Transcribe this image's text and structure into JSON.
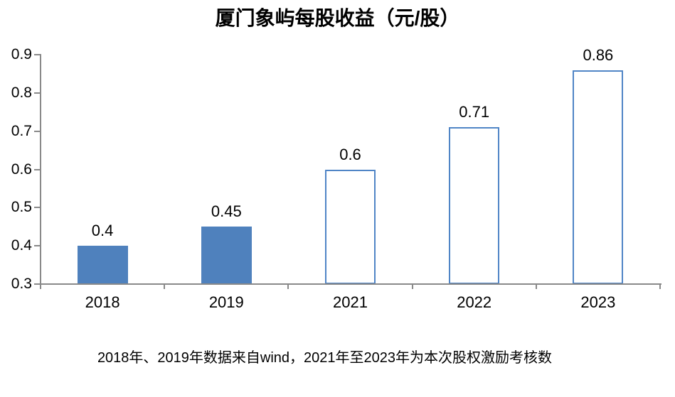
{
  "chart_data": {
    "type": "bar",
    "title": "厦门象屿每股收益（元/股）",
    "categories": [
      "2018",
      "2019",
      "2021",
      "2022",
      "2023"
    ],
    "values": [
      0.4,
      0.45,
      0.6,
      0.71,
      0.86
    ],
    "data_labels": [
      "0.4",
      "0.45",
      "0.6",
      "0.71",
      "0.86"
    ],
    "bar_styles": [
      "filled",
      "filled",
      "outline",
      "outline",
      "outline"
    ],
    "ylim": [
      0.3,
      0.9
    ],
    "yticks": [
      "0.3",
      "0.4",
      "0.5",
      "0.6",
      "0.7",
      "0.8",
      "0.9"
    ],
    "grid": false,
    "legend": "none",
    "xlabel": "",
    "ylabel": "",
    "footnote": "2018年、2019年数据来自wind，2021年至2023年为本次股权激励考核数",
    "colors": {
      "bar_fill": "#4F81BD",
      "bar_outline": "#5085C6",
      "axis": "#898989",
      "background": "#FFFFFF"
    }
  }
}
